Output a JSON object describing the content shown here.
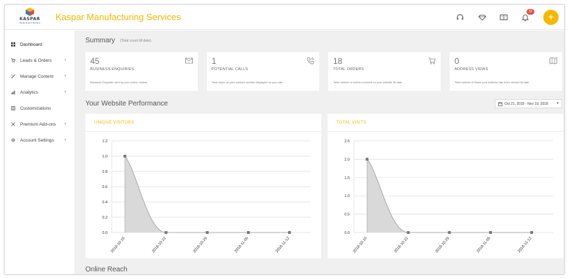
{
  "header": {
    "logo_text": "KASPAR",
    "logo_sub": "MANUFACTURING",
    "title": "Kaspar Manufacturing Services",
    "notification_count": "32",
    "fab_symbol": "+",
    "accent_color": "#f5b800"
  },
  "sidebar": {
    "items": [
      {
        "label": "Dashboard",
        "icon": "grid-icon"
      },
      {
        "label": "Leads & Orders",
        "icon": "cart-icon"
      },
      {
        "label": "Manage Content",
        "icon": "pencil-icon"
      },
      {
        "label": "Analytics",
        "icon": "bar-chart-icon"
      },
      {
        "label": "Customizations",
        "icon": "table-icon"
      },
      {
        "label": "Premium Add-ons",
        "icon": "puzzle-icon"
      },
      {
        "label": "Account Settings",
        "icon": "gear-icon"
      }
    ]
  },
  "summary": {
    "title": "Summary",
    "subtitle": "(Total count till date)",
    "cards": [
      {
        "value": "45",
        "label": "BUSINESS ENQUIRIES",
        "desc": "Business Enquiries sent by your online visitors",
        "icon": "mail-icon"
      },
      {
        "value": "1",
        "label": "POTENTIAL CALLS",
        "desc": "Total clicks on your contact number displayed on your site",
        "icon": "phone-icon"
      },
      {
        "value": "18",
        "label": "TOTAL ORDERS",
        "desc": "Total number of orders received on your website till date",
        "icon": "cart-icon"
      },
      {
        "value": "0",
        "label": "ADDRESS VIEWS",
        "desc": "Total number of times your address has been viewed till date",
        "icon": "map-icon"
      }
    ]
  },
  "performance": {
    "title": "Your Website Performance",
    "date_range": "Oct 21, 2018 - Nov 19, 2018"
  },
  "chart_data": [
    {
      "type": "area",
      "title": "UNIQUE VISITORS",
      "x": [
        "2018-10-15",
        "2018-10-22",
        "2018-10-29",
        "2018-11-05",
        "2018-11-12"
      ],
      "values": [
        1.0,
        0,
        0,
        0,
        0
      ],
      "ylim": [
        0,
        1.2
      ],
      "yticks": [
        "0.0",
        "0.2",
        "0.4",
        "0.6",
        "0.8",
        "1.0",
        "1.2"
      ],
      "grid": true
    },
    {
      "type": "area",
      "title": "TOTAL VISITS",
      "x": [
        "2018-10-15",
        "2018-10-22",
        "2018-10-29",
        "2018-11-05",
        "2018-11-12"
      ],
      "values": [
        2.0,
        0,
        0,
        0,
        0
      ],
      "ylim": [
        0,
        2.5
      ],
      "yticks": [
        "0.0",
        "0.5",
        "1.0",
        "1.5",
        "2.0",
        "2.5"
      ],
      "grid": true
    }
  ],
  "reach": {
    "title": "Online Reach"
  }
}
